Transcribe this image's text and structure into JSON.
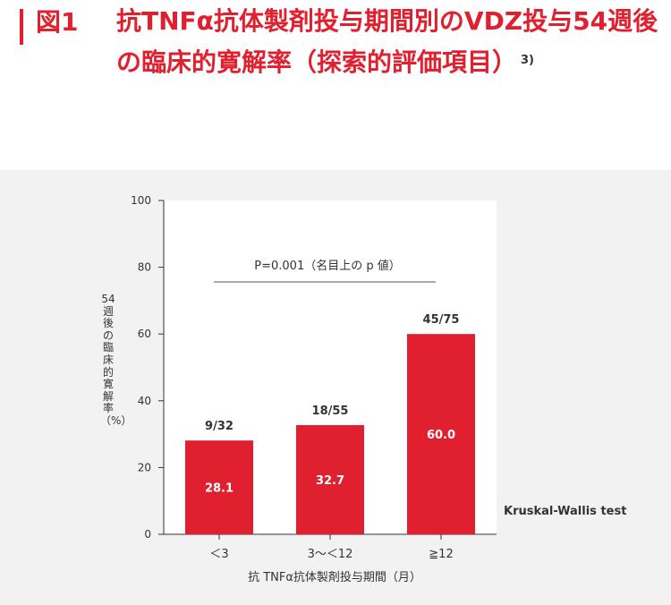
{
  "header": {
    "lead": "図1",
    "title": "抗TNFα抗体製剤投与期間別のVDZ投与54週後の臨床的寛解率（探索的評価項目）",
    "ref": "3)"
  },
  "chart_data": {
    "type": "bar",
    "categories": [
      "＜3",
      "3～＜12",
      "≧12"
    ],
    "values": [
      28.1,
      32.7,
      60.0
    ],
    "value_labels": [
      "28.1",
      "32.7",
      "60.0"
    ],
    "counts": [
      "9/32",
      "18/55",
      "45/75"
    ],
    "ylabel": "54週後の臨床的寛解率（%）",
    "xlabel": "抗 TNFα抗体製剤投与期間（月）",
    "ylim": [
      0,
      100
    ],
    "yticks": [
      0,
      20,
      40,
      60,
      80,
      100
    ],
    "annotation": "P=0.001（名目上の p 値）",
    "test_note": "Kruskal-Wallis test",
    "bar_color": "#e0202e",
    "grid": false
  }
}
